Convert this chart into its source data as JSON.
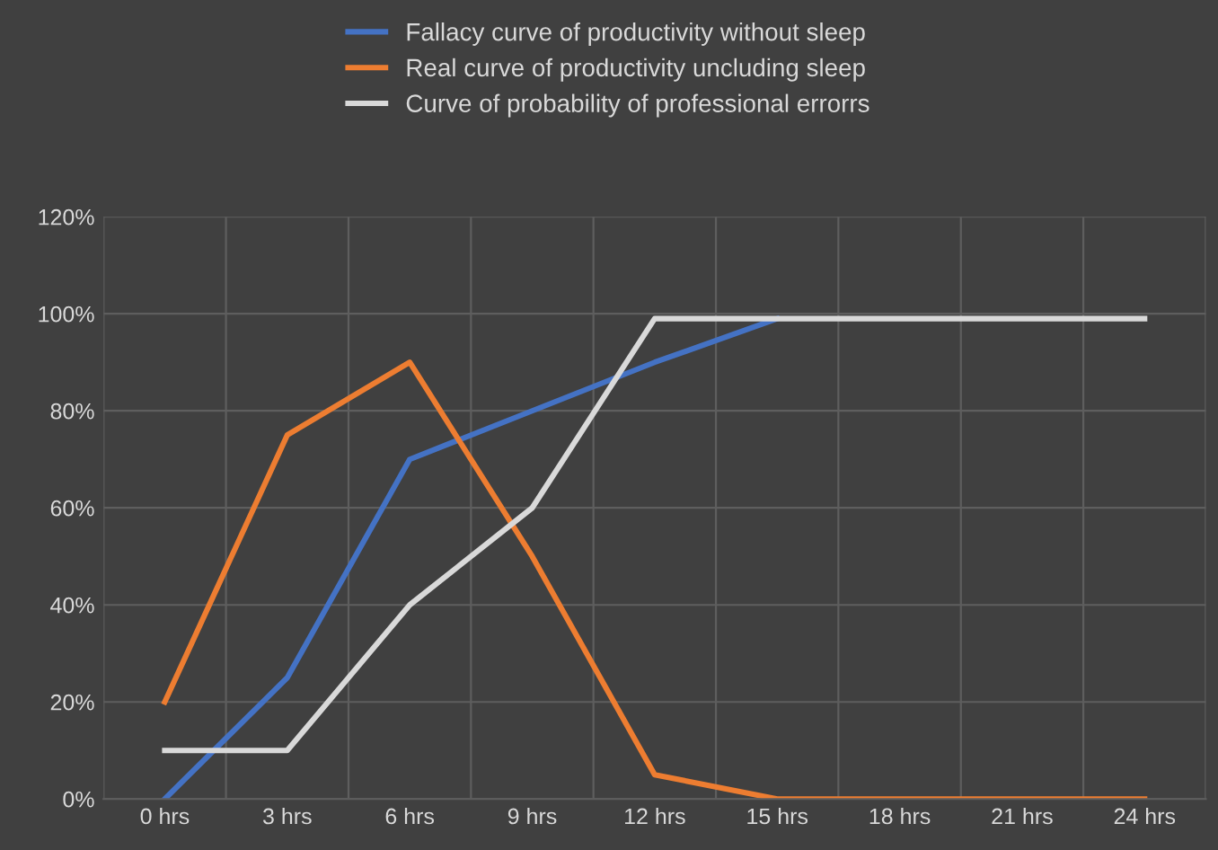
{
  "chart_data": {
    "type": "line",
    "categories": [
      "0 hrs",
      "3 hrs",
      "6 hrs",
      "9 hrs",
      "12 hrs",
      "15 hrs",
      "18 hrs",
      "21 hrs",
      "24 hrs"
    ],
    "series": [
      {
        "name": "Fallacy curve of productivity without sleep",
        "color": "#4472c4",
        "values": [
          0,
          25,
          70,
          80,
          90,
          99,
          null,
          null,
          null
        ]
      },
      {
        "name": "Real curve of productivity uncluding sleep",
        "color": "#ed7d31",
        "values": [
          20,
          75,
          90,
          50,
          5,
          0,
          0,
          0,
          0
        ]
      },
      {
        "name": "Curve of probability of professional errorrs",
        "color": "#d9d9d9",
        "values": [
          10,
          10,
          40,
          60,
          99,
          99,
          99,
          99,
          99
        ]
      }
    ],
    "ylim": [
      0,
      120
    ],
    "yticks": [
      {
        "value": 0,
        "label": "0%"
      },
      {
        "value": 20,
        "label": "20%"
      },
      {
        "value": 40,
        "label": "40%"
      },
      {
        "value": 60,
        "label": "60%"
      },
      {
        "value": 80,
        "label": "80%"
      },
      {
        "value": 100,
        "label": "100%"
      },
      {
        "value": 120,
        "label": "120%"
      }
    ],
    "grid": true,
    "legend": "top",
    "marker": "none",
    "line_style": "solid"
  }
}
